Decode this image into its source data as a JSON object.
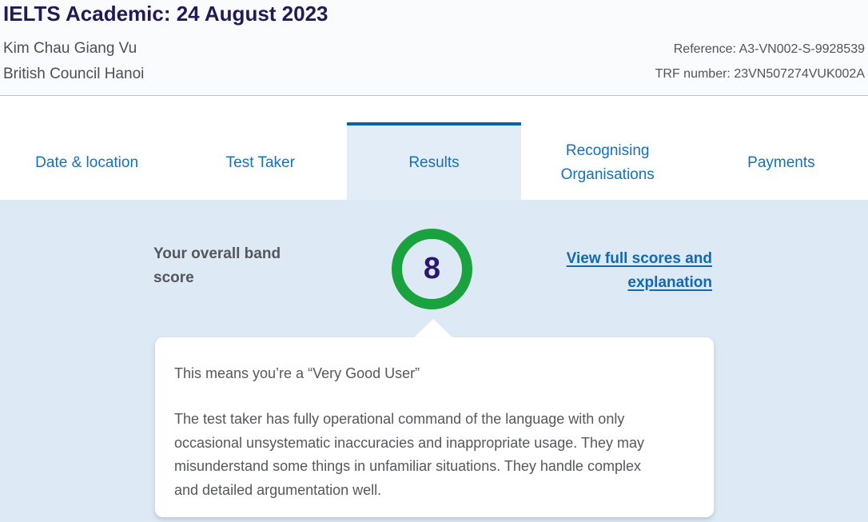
{
  "header": {
    "title": "IELTS Academic: 24 August 2023",
    "candidate_name": "Kim Chau Giang Vu",
    "centre_name": "British Council Hanoi",
    "reference": "Reference: A3-VN002-S-9928539",
    "trf_number": "TRF number: 23VN507274VUK002A"
  },
  "tabs": [
    {
      "label": "Date & location",
      "active": false
    },
    {
      "label": "Test Taker",
      "active": false
    },
    {
      "label": "Results",
      "active": true
    },
    {
      "label": "Recognising Organisations",
      "active": false
    },
    {
      "label": "Payments",
      "active": false
    }
  ],
  "results": {
    "heading": "Your overall band score",
    "score": "8",
    "link_label": "View full scores and explanation",
    "card_title": "This means you’re a “Very Good User”",
    "card_body": "The test taker has fully operational command of the language with only occasional unsystematic inaccuracies and inappropriate usage. They may misunderstand some things in unfamiliar situations. They handle complex and detailed argumentation well."
  },
  "colors": {
    "title_navy": "#231a55",
    "tab_blue": "#1470bb",
    "active_tab_border": "#0861ab",
    "active_tab_bg": "#e3edf7",
    "panel_bg": "#dde9f4",
    "band_ring_green": "#19a23e",
    "score_indigo": "#2a186d",
    "link_blue": "#1268b3",
    "text_gray": "#55575d"
  }
}
